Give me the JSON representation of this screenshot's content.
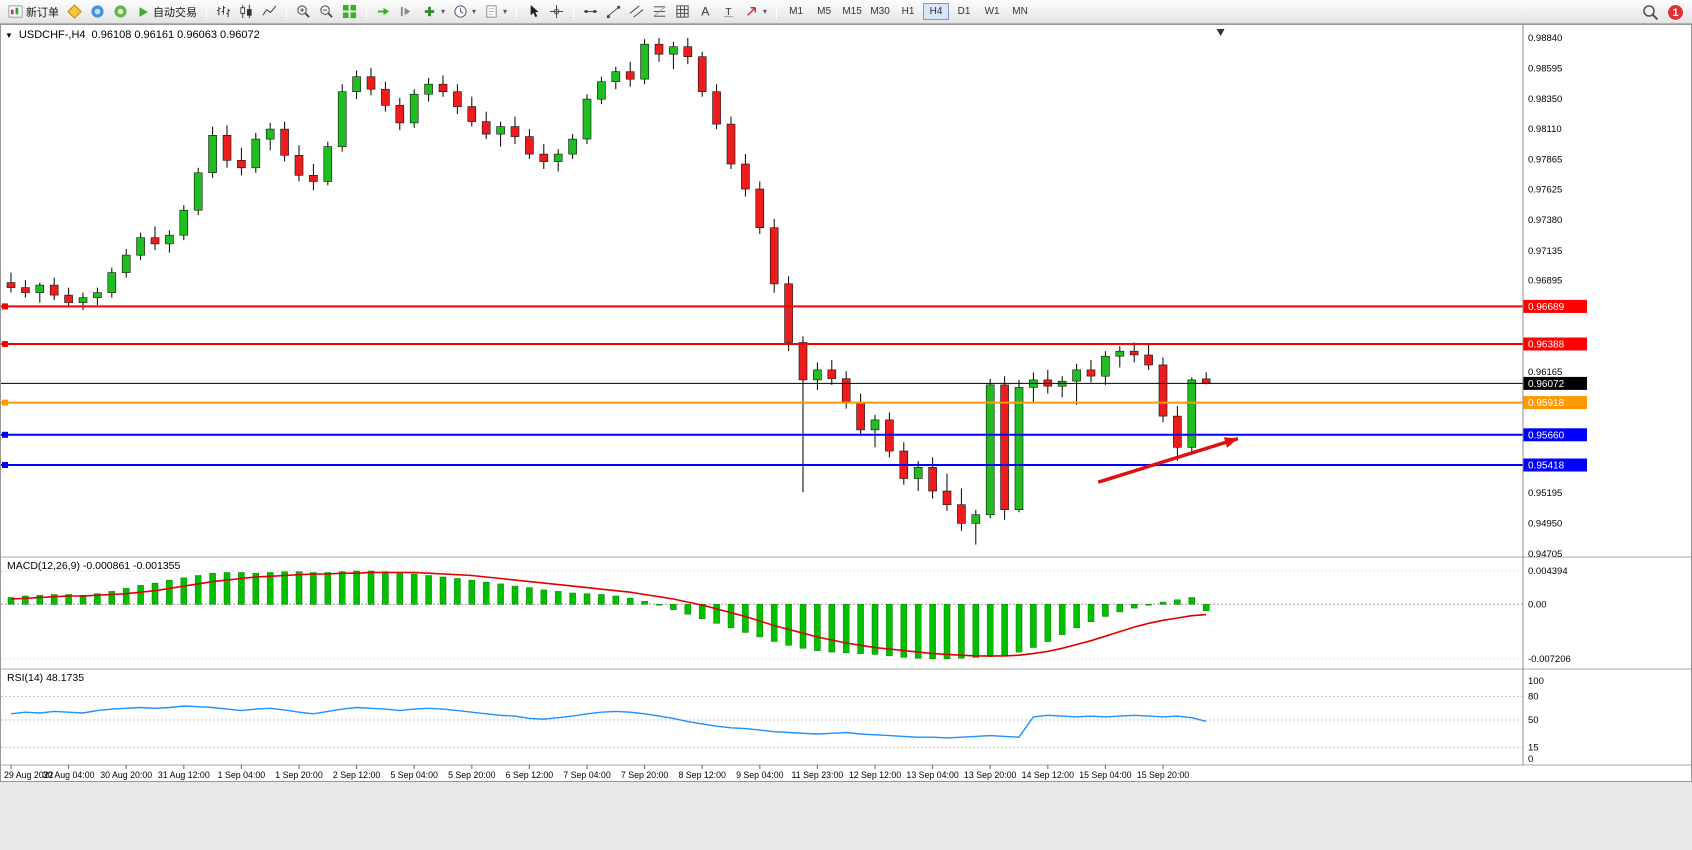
{
  "toolbar": {
    "new_order_label": "新订单",
    "auto_trading_label": "自动交易",
    "timeframes": [
      "M1",
      "M5",
      "M15",
      "M30",
      "H1",
      "H4",
      "D1",
      "W1",
      "MN"
    ],
    "active_timeframe": "H4",
    "notification_badge": "1"
  },
  "chart_data": {
    "type": "candlestick",
    "symbol": "USDCHF-,H4",
    "ohlc_line": "0.96108 0.96161 0.96063 0.96072",
    "ylim": [
      0.94705,
      0.9884
    ],
    "price_ticks": [
      "0.98840",
      "0.98595",
      "0.98350",
      "0.98110",
      "0.97865",
      "0.97625",
      "0.97380",
      "0.97135",
      "0.96895",
      "0.96165",
      "0.95195",
      "0.94950",
      "0.94705"
    ],
    "x_labels": [
      "29 Aug 2022",
      "30 Aug 04:00",
      "30 Aug 20:00",
      "31 Aug 12:00",
      "1 Sep 04:00",
      "1 Sep 20:00",
      "2 Sep 12:00",
      "5 Sep 04:00",
      "5 Sep 20:00",
      "6 Sep 12:00",
      "7 Sep 04:00",
      "7 Sep 20:00",
      "8 Sep 12:00",
      "9 Sep 04:00",
      "11 Sep 23:00",
      "12 Sep 12:00",
      "13 Sep 04:00",
      "13 Sep 20:00",
      "14 Sep 12:00",
      "15 Sep 04:00",
      "15 Sep 20:00"
    ],
    "bars_per_label": 4,
    "colors": {
      "bull": "#1FBF1F",
      "bear": "#EE1C1C",
      "wick": "#000000",
      "macd_hist": "#00C000",
      "macd_hist_edge": "#008000",
      "macd_signal": "#E00000",
      "rsi_line": "#1E90FF"
    },
    "candles": [
      [
        0.9688,
        0.9696,
        0.968,
        0.9684
      ],
      [
        0.9684,
        0.969,
        0.9676,
        0.968
      ],
      [
        0.968,
        0.9688,
        0.9672,
        0.9686
      ],
      [
        0.9686,
        0.9692,
        0.9674,
        0.9678
      ],
      [
        0.9678,
        0.9684,
        0.9668,
        0.9672
      ],
      [
        0.9672,
        0.968,
        0.9666,
        0.9676
      ],
      [
        0.9676,
        0.9684,
        0.967,
        0.968
      ],
      [
        0.968,
        0.97,
        0.9676,
        0.9696
      ],
      [
        0.9696,
        0.9715,
        0.9692,
        0.971
      ],
      [
        0.971,
        0.9728,
        0.9706,
        0.9724
      ],
      [
        0.9724,
        0.9733,
        0.9714,
        0.9719
      ],
      [
        0.9719,
        0.973,
        0.9712,
        0.9726
      ],
      [
        0.9726,
        0.975,
        0.9722,
        0.9746
      ],
      [
        0.9746,
        0.978,
        0.9742,
        0.9776
      ],
      [
        0.9776,
        0.9813,
        0.9772,
        0.9806
      ],
      [
        0.9806,
        0.9814,
        0.978,
        0.9786
      ],
      [
        0.9786,
        0.9796,
        0.9774,
        0.978
      ],
      [
        0.978,
        0.9808,
        0.9776,
        0.9803
      ],
      [
        0.9803,
        0.9816,
        0.9794,
        0.9811
      ],
      [
        0.9811,
        0.9817,
        0.9785,
        0.979
      ],
      [
        0.979,
        0.9798,
        0.9769,
        0.9774
      ],
      [
        0.9774,
        0.9783,
        0.9762,
        0.9769
      ],
      [
        0.9769,
        0.9801,
        0.9766,
        0.9797
      ],
      [
        0.9797,
        0.9847,
        0.9793,
        0.9841
      ],
      [
        0.9841,
        0.9858,
        0.9835,
        0.9853
      ],
      [
        0.9853,
        0.986,
        0.9838,
        0.9843
      ],
      [
        0.9843,
        0.9849,
        0.9825,
        0.983
      ],
      [
        0.983,
        0.9836,
        0.981,
        0.9816
      ],
      [
        0.9816,
        0.9843,
        0.9812,
        0.9839
      ],
      [
        0.9839,
        0.9852,
        0.9833,
        0.9847
      ],
      [
        0.9847,
        0.9854,
        0.9837,
        0.9841
      ],
      [
        0.9841,
        0.9847,
        0.9823,
        0.9829
      ],
      [
        0.9829,
        0.9837,
        0.9813,
        0.9817
      ],
      [
        0.9817,
        0.9825,
        0.9803,
        0.9807
      ],
      [
        0.9807,
        0.9817,
        0.9797,
        0.9813
      ],
      [
        0.9813,
        0.9821,
        0.9799,
        0.9805
      ],
      [
        0.9805,
        0.9811,
        0.9787,
        0.9791
      ],
      [
        0.9791,
        0.9799,
        0.9779,
        0.9785
      ],
      [
        0.9785,
        0.9795,
        0.9777,
        0.9791
      ],
      [
        0.9791,
        0.9807,
        0.9787,
        0.9803
      ],
      [
        0.9803,
        0.9839,
        0.9799,
        0.9835
      ],
      [
        0.9835,
        0.9853,
        0.9831,
        0.9849
      ],
      [
        0.9849,
        0.9861,
        0.9843,
        0.9857
      ],
      [
        0.9857,
        0.9865,
        0.9845,
        0.9851
      ],
      [
        0.9851,
        0.9883,
        0.9847,
        0.9879
      ],
      [
        0.9879,
        0.9884,
        0.9865,
        0.9871
      ],
      [
        0.9871,
        0.9881,
        0.9859,
        0.9877
      ],
      [
        0.9877,
        0.9884,
        0.9863,
        0.9869
      ],
      [
        0.9869,
        0.9873,
        0.9837,
        0.9841
      ],
      [
        0.9841,
        0.9847,
        0.9811,
        0.9815
      ],
      [
        0.9815,
        0.9821,
        0.9779,
        0.9783
      ],
      [
        0.9783,
        0.9791,
        0.9757,
        0.9763
      ],
      [
        0.9763,
        0.9769,
        0.9727,
        0.9732
      ],
      [
        0.9732,
        0.9739,
        0.968,
        0.9687
      ],
      [
        0.9687,
        0.9693,
        0.9633,
        0.964
      ],
      [
        0.964,
        0.9645,
        0.952,
        0.961
      ],
      [
        0.961,
        0.9624,
        0.9602,
        0.9618
      ],
      [
        0.9618,
        0.9626,
        0.9606,
        0.9611
      ],
      [
        0.9611,
        0.9617,
        0.9587,
        0.9592
      ],
      [
        0.9592,
        0.9599,
        0.9565,
        0.957
      ],
      [
        0.957,
        0.9582,
        0.9556,
        0.9578
      ],
      [
        0.9578,
        0.9584,
        0.9548,
        0.9553
      ],
      [
        0.9553,
        0.956,
        0.9526,
        0.9531
      ],
      [
        0.9531,
        0.9545,
        0.9521,
        0.954
      ],
      [
        0.954,
        0.9548,
        0.9515,
        0.9521
      ],
      [
        0.9521,
        0.9535,
        0.9505,
        0.951
      ],
      [
        0.951,
        0.9523,
        0.9489,
        0.9495
      ],
      [
        0.9495,
        0.9506,
        0.9478,
        0.9502
      ],
      [
        0.9502,
        0.9611,
        0.9499,
        0.9606
      ],
      [
        0.9606,
        0.9613,
        0.9498,
        0.9506
      ],
      [
        0.9506,
        0.961,
        0.9504,
        0.9604
      ],
      [
        0.9604,
        0.9616,
        0.9592,
        0.961
      ],
      [
        0.961,
        0.9618,
        0.9599,
        0.9605
      ],
      [
        0.9605,
        0.9613,
        0.9596,
        0.9609
      ],
      [
        0.9609,
        0.9623,
        0.959,
        0.9618
      ],
      [
        0.9618,
        0.9626,
        0.9608,
        0.9613
      ],
      [
        0.9613,
        0.9633,
        0.9606,
        0.9629
      ],
      [
        0.9629,
        0.9637,
        0.962,
        0.9633
      ],
      [
        0.9633,
        0.964,
        0.9624,
        0.963
      ],
      [
        0.963,
        0.9639,
        0.9618,
        0.9622
      ],
      [
        0.9622,
        0.9628,
        0.9576,
        0.9581
      ],
      [
        0.9581,
        0.9589,
        0.9545,
        0.9556
      ],
      [
        0.9556,
        0.9612,
        0.9552,
        0.961
      ],
      [
        0.96108,
        0.96161,
        0.96063,
        0.96072
      ]
    ],
    "hlines": [
      {
        "price": 0.96689,
        "label": "0.96689",
        "color": "#FF0000",
        "width": 2,
        "handle": true
      },
      {
        "price": 0.96388,
        "label": "0.96388",
        "color": "#FF0000",
        "width": 2,
        "handle": true
      },
      {
        "price": 0.96072,
        "label": "0.96072",
        "color": "#000000",
        "width": 1,
        "handle": false
      },
      {
        "price": 0.95918,
        "label": "0.95918",
        "color": "#FF9900",
        "width": 2,
        "handle": true
      },
      {
        "price": 0.9566,
        "label": "0.95660",
        "color": "#0000FF",
        "width": 2,
        "handle": true
      },
      {
        "price": 0.95418,
        "label": "0.95418",
        "color": "#0000FF",
        "width": 2,
        "handle": true
      }
    ],
    "arrow_annotation": {
      "from_bar": 75.5,
      "from_price": 0.9528,
      "to_bar": 85.2,
      "to_price": 0.9563,
      "color": "#E01010"
    },
    "shift_marker_bar": 84,
    "macd": {
      "label": "MACD(12,26,9) -0.000861 -0.001355",
      "axis_labels": [
        "0.004394",
        "0.00",
        "-0.007206"
      ],
      "ymax": 0.004394,
      "ymin": -0.007206,
      "histogram": [
        0.0009,
        0.0011,
        0.0012,
        0.0013,
        0.0013,
        0.0012,
        0.0014,
        0.0017,
        0.0021,
        0.0025,
        0.0028,
        0.0032,
        0.0035,
        0.0038,
        0.0041,
        0.0042,
        0.0042,
        0.0041,
        0.0042,
        0.0043,
        0.0043,
        0.0042,
        0.0042,
        0.0043,
        0.0044,
        0.0044,
        0.0043,
        0.0042,
        0.004,
        0.0038,
        0.0036,
        0.0034,
        0.0032,
        0.0029,
        0.0027,
        0.0024,
        0.0022,
        0.0019,
        0.0017,
        0.0015,
        0.0014,
        0.0013,
        0.0011,
        0.0008,
        0.0004,
        -0.0001,
        -0.0007,
        -0.0013,
        -0.0019,
        -0.0025,
        -0.0031,
        -0.0037,
        -0.0043,
        -0.0049,
        -0.0054,
        -0.0058,
        -0.0061,
        -0.0063,
        -0.0064,
        -0.0065,
        -0.0066,
        -0.0068,
        -0.007,
        -0.0071,
        -0.0072,
        -0.0072,
        -0.0071,
        -0.007,
        -0.0069,
        -0.0067,
        -0.0063,
        -0.0057,
        -0.0049,
        -0.004,
        -0.0031,
        -0.0023,
        -0.0016,
        -0.001,
        -0.0005,
        -0.0001,
        0.0003,
        0.0006,
        0.0009,
        -0.000861
      ],
      "signal": [
        0.0007,
        0.0008,
        0.0009,
        0.001,
        0.0011,
        0.0011,
        0.0012,
        0.0013,
        0.0014,
        0.0016,
        0.0018,
        0.0021,
        0.0024,
        0.0027,
        0.003,
        0.0032,
        0.0034,
        0.0036,
        0.0037,
        0.0038,
        0.0039,
        0.004,
        0.004,
        0.0041,
        0.0041,
        0.0042,
        0.0042,
        0.0042,
        0.0042,
        0.0041,
        0.004,
        0.0039,
        0.0038,
        0.0036,
        0.0034,
        0.0032,
        0.003,
        0.0028,
        0.0026,
        0.0024,
        0.0022,
        0.002,
        0.0018,
        0.0016,
        0.0013,
        0.001,
        0.0007,
        0.0003,
        -0.0001,
        -0.0006,
        -0.0011,
        -0.0016,
        -0.0022,
        -0.0028,
        -0.0033,
        -0.0038,
        -0.0043,
        -0.0047,
        -0.0051,
        -0.0054,
        -0.0057,
        -0.0059,
        -0.0061,
        -0.0063,
        -0.0065,
        -0.0066,
        -0.0067,
        -0.0068,
        -0.0068,
        -0.0068,
        -0.0067,
        -0.0065,
        -0.0062,
        -0.0058,
        -0.0053,
        -0.0048,
        -0.0042,
        -0.0036,
        -0.003,
        -0.0025,
        -0.0021,
        -0.0018,
        -0.0015,
        -0.001355
      ]
    },
    "rsi": {
      "label": "RSI(14) 48.1735",
      "axis_labels": [
        "100",
        "80",
        "50",
        "15",
        "0"
      ],
      "levels": [
        80,
        50,
        15
      ],
      "values": [
        58,
        60,
        59,
        61,
        60,
        59,
        62,
        64,
        65,
        66,
        65,
        66,
        68,
        67,
        66,
        64,
        62,
        64,
        65,
        63,
        60,
        58,
        61,
        64,
        66,
        65,
        64,
        62,
        64,
        65,
        64,
        62,
        60,
        58,
        56,
        55,
        52,
        51,
        53,
        55,
        58,
        60,
        61,
        60,
        58,
        55,
        52,
        48,
        45,
        42,
        40,
        39,
        37,
        35,
        34,
        33,
        32,
        33,
        34,
        32,
        31,
        30,
        29,
        28,
        28,
        27,
        28,
        29,
        30,
        29,
        28,
        54,
        56,
        55,
        54,
        55,
        54,
        55,
        56,
        55,
        54,
        55,
        53,
        48.1735
      ]
    }
  }
}
